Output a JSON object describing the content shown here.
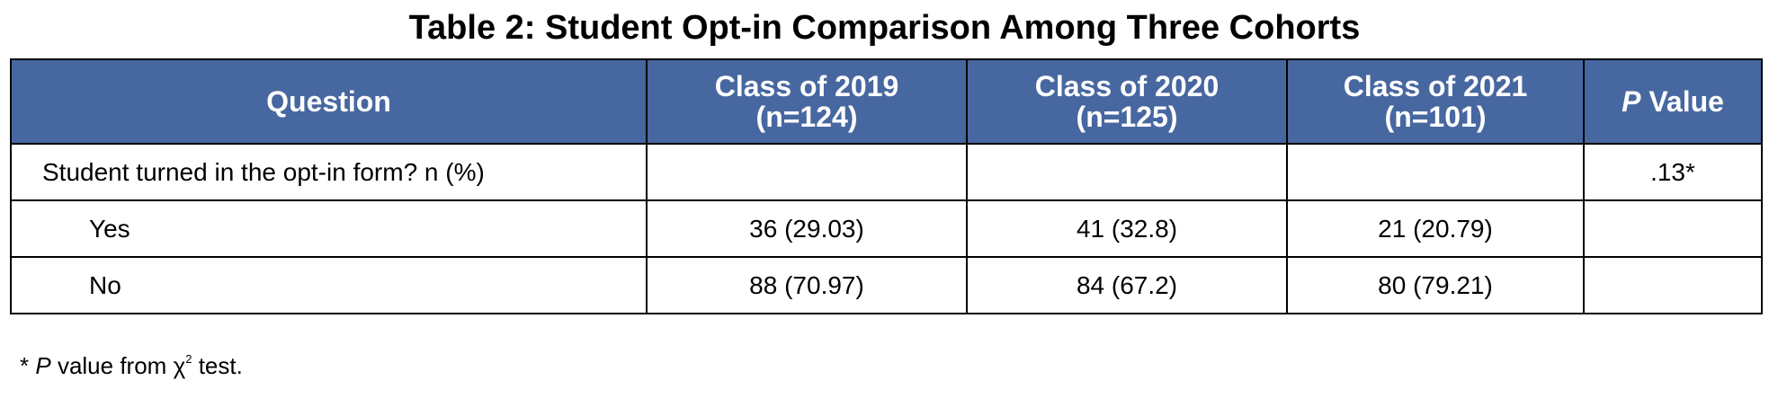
{
  "title": "Table 2: Student Opt-in Comparison Among Three Cohorts",
  "table": {
    "headers": [
      {
        "lines": [
          "Question"
        ]
      },
      {
        "lines": [
          "Class of 2019",
          "(n=124)"
        ]
      },
      {
        "lines": [
          "Class of 2020",
          "(n=125)"
        ]
      },
      {
        "lines": [
          "Class of 2021",
          "(n=101)"
        ]
      },
      {
        "italic": "P",
        "rest": "Value"
      }
    ],
    "rows": [
      [
        "Student turned in the opt-in form? n (%)",
        null,
        null,
        null,
        ".13*"
      ],
      [
        "Yes",
        "36 (29.03)",
        "41 (32.8)",
        "21 (20.79)",
        null
      ],
      [
        "No",
        "88 (70.97)",
        "84 (67.2)",
        "80 (79.21)",
        null
      ]
    ]
  },
  "footnote": {
    "marker": "*",
    "italic": "P",
    "text": "value from",
    "symbol": "χ",
    "superscript": "2",
    "rest": "test."
  }
}
